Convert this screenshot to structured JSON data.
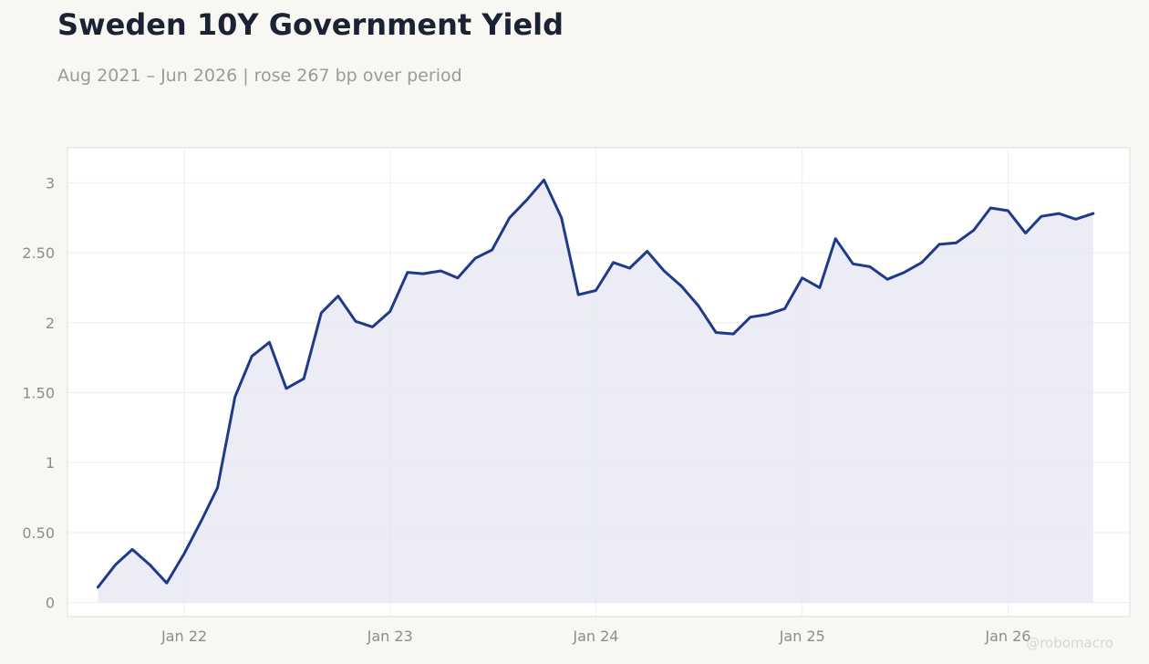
{
  "header": {
    "title": "Sweden 10Y Government Yield",
    "subtitle": "Aug 2021 – Jun 2026 | rose 267 bp over period"
  },
  "watermark": "@robomacro",
  "colors": {
    "line": "#1f3a8a",
    "fill": "#e4e6f1",
    "plot_bg": "#ffffff",
    "page_bg": "#f9f7f3",
    "grid": "#eeeeee",
    "frame": "#dddddd"
  },
  "chart_data": {
    "type": "area",
    "title": "Sweden 10Y Government Yield",
    "xlabel": "",
    "ylabel": "",
    "ylim": [
      -0.1,
      3.25
    ],
    "xlim": [
      "2021-06-08",
      "2026-08-05"
    ],
    "grid": true,
    "legend": "none",
    "y_ticks": [
      {
        "value": 0,
        "label": "0"
      },
      {
        "value": 0.5,
        "label": "0.50"
      },
      {
        "value": 1,
        "label": "1"
      },
      {
        "value": 1.5,
        "label": "1.50"
      },
      {
        "value": 2,
        "label": "2"
      },
      {
        "value": 2.5,
        "label": "2.50"
      },
      {
        "value": 3,
        "label": "3"
      }
    ],
    "x_ticks": [
      {
        "date": "2022-01-01",
        "label": "Jan 22"
      },
      {
        "date": "2023-01-01",
        "label": "Jan 23"
      },
      {
        "date": "2024-01-01",
        "label": "Jan 24"
      },
      {
        "date": "2025-01-01",
        "label": "Jan 25"
      },
      {
        "date": "2026-01-01",
        "label": "Jan 26"
      }
    ],
    "series": [
      {
        "points": [
          [
            "2021-08-01",
            0.11
          ],
          [
            "2021-09-01",
            0.27
          ],
          [
            "2021-10-01",
            0.38
          ],
          [
            "2021-11-01",
            0.27
          ],
          [
            "2021-12-01",
            0.14
          ],
          [
            "2022-01-01",
            0.35
          ],
          [
            "2022-02-01",
            0.59
          ],
          [
            "2022-03-01",
            0.82
          ],
          [
            "2022-04-01",
            1.47
          ],
          [
            "2022-05-01",
            1.76
          ],
          [
            "2022-06-01",
            1.86
          ],
          [
            "2022-07-01",
            1.53
          ],
          [
            "2022-08-01",
            1.6
          ],
          [
            "2022-09-01",
            2.07
          ],
          [
            "2022-10-01",
            2.19
          ],
          [
            "2022-11-01",
            2.01
          ],
          [
            "2022-12-01",
            1.97
          ],
          [
            "2023-01-01",
            2.08
          ],
          [
            "2023-02-01",
            2.36
          ],
          [
            "2023-03-01",
            2.35
          ],
          [
            "2023-04-01",
            2.37
          ],
          [
            "2023-05-01",
            2.32
          ],
          [
            "2023-06-01",
            2.46
          ],
          [
            "2023-07-01",
            2.52
          ],
          [
            "2023-08-01",
            2.75
          ],
          [
            "2023-09-01",
            2.88
          ],
          [
            "2023-10-01",
            3.02
          ],
          [
            "2023-11-01",
            2.75
          ],
          [
            "2023-12-01",
            2.2
          ],
          [
            "2024-01-01",
            2.23
          ],
          [
            "2024-02-01",
            2.43
          ],
          [
            "2024-03-01",
            2.39
          ],
          [
            "2024-04-01",
            2.51
          ],
          [
            "2024-05-01",
            2.37
          ],
          [
            "2024-06-01",
            2.26
          ],
          [
            "2024-07-01",
            2.12
          ],
          [
            "2024-08-01",
            1.93
          ],
          [
            "2024-09-01",
            1.92
          ],
          [
            "2024-10-01",
            2.04
          ],
          [
            "2024-11-01",
            2.06
          ],
          [
            "2024-12-01",
            2.1
          ],
          [
            "2025-01-01",
            2.32
          ],
          [
            "2025-02-01",
            2.25
          ],
          [
            "2025-03-01",
            2.6
          ],
          [
            "2025-04-01",
            2.42
          ],
          [
            "2025-05-01",
            2.4
          ],
          [
            "2025-06-01",
            2.31
          ],
          [
            "2025-07-01",
            2.36
          ],
          [
            "2025-08-01",
            2.43
          ],
          [
            "2025-09-01",
            2.56
          ],
          [
            "2025-10-01",
            2.57
          ],
          [
            "2025-11-01",
            2.66
          ],
          [
            "2025-12-01",
            2.82
          ],
          [
            "2026-01-01",
            2.8
          ],
          [
            "2026-02-01",
            2.64
          ],
          [
            "2026-03-01",
            2.76
          ],
          [
            "2026-04-01",
            2.78
          ],
          [
            "2026-05-01",
            2.74
          ],
          [
            "2026-06-01",
            2.78
          ]
        ]
      }
    ]
  }
}
